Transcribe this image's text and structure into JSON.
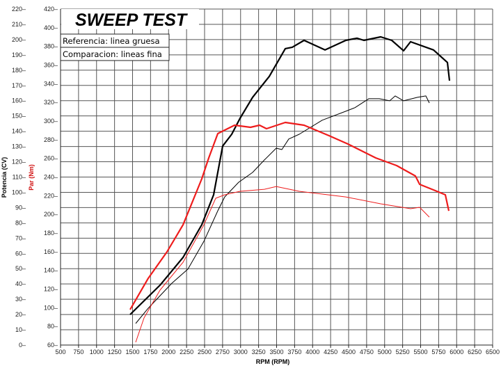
{
  "chart_data": {
    "type": "line",
    "title": "SWEEP TEST",
    "legend": [
      "Referencia: linea gruesa",
      "Comparacion: lineas fina"
    ],
    "legend_placement": "top-left",
    "xlabel": "RPM (RPM)",
    "ylabel_left_outer": "Potencia (CV)",
    "ylabel_left_inner": "Par (Nm)",
    "xlim": [
      500,
      6500
    ],
    "x_ticks": [
      500,
      750,
      1000,
      1250,
      1500,
      1750,
      2000,
      2250,
      2500,
      2750,
      3000,
      3250,
      3500,
      3750,
      4000,
      4250,
      4500,
      4750,
      5000,
      5250,
      5500,
      5750,
      6000,
      6250,
      6500
    ],
    "ylim_power": [
      0,
      220
    ],
    "power_ticks": [
      0,
      10,
      20,
      30,
      40,
      50,
      60,
      70,
      80,
      90,
      100,
      110,
      120,
      130,
      140,
      150,
      160,
      170,
      180,
      190,
      200,
      210,
      220
    ],
    "ylim_torque": [
      60,
      420
    ],
    "torque_ticks": [
      60,
      80,
      100,
      120,
      140,
      160,
      180,
      200,
      220,
      240,
      260,
      280,
      300,
      320,
      340,
      360,
      380,
      400,
      420
    ],
    "grid": true,
    "colors": {
      "power": "#000000",
      "torque": "#ee1c1c",
      "grid": "#555555",
      "torque_label": "#d01010"
    },
    "series": [
      {
        "name": "Potencia referencia",
        "axis": "power",
        "style": "thick",
        "x": [
          1466,
          1882,
          2201,
          2461,
          2626,
          2751,
          2877,
          2993,
          3167,
          3399,
          3621,
          3717,
          3882,
          4172,
          4461,
          4616,
          4713,
          4945,
          5099,
          5263,
          5360,
          5679,
          5872,
          5901
        ],
        "y": [
          20.0,
          39.2,
          57.4,
          78.8,
          98.4,
          130.3,
          138.0,
          148.5,
          162.2,
          175.9,
          194.1,
          195.0,
          199.5,
          193.2,
          199.5,
          200.9,
          199.5,
          201.8,
          199.5,
          192.7,
          198.6,
          193.2,
          185.0,
          173.1
        ]
      },
      {
        "name": "Potencia comparacion",
        "axis": "power",
        "style": "thin",
        "x": [
          1543,
          1717,
          2046,
          2268,
          2490,
          2684,
          2780,
          2973,
          3167,
          3331,
          3495,
          3573,
          3669,
          3814,
          4133,
          4461,
          4587,
          4780,
          4925,
          5070,
          5147,
          5263,
          5457,
          5572,
          5621
        ],
        "y": [
          14.1,
          24.1,
          40.5,
          49.7,
          67.9,
          87.9,
          97.0,
          106.6,
          113.0,
          121.2,
          128.9,
          128.0,
          134.9,
          138.0,
          147.2,
          153.1,
          155.4,
          161.3,
          161.3,
          159.9,
          163.1,
          159.9,
          162.2,
          163.1,
          158.5
        ]
      },
      {
        "name": "Par referencia",
        "axis": "torque",
        "style": "thick",
        "x": [
          1466,
          1717,
          1978,
          2201,
          2461,
          2558,
          2684,
          2780,
          2916,
          3138,
          3263,
          3360,
          3621,
          3882,
          4230,
          4490,
          4877,
          5167,
          5428,
          5486,
          5679,
          5843,
          5891
        ],
        "y": [
          98.0,
          131.5,
          159.9,
          188.9,
          238.1,
          260.5,
          286.6,
          290.3,
          295.5,
          293.3,
          295.5,
          291.8,
          298.5,
          295.5,
          284.3,
          275.4,
          260.5,
          252.3,
          241.1,
          232.2,
          226.2,
          221.0,
          203.8
        ]
      },
      {
        "name": "Par comparacion",
        "axis": "torque",
        "style": "thin",
        "x": [
          1543,
          1659,
          1882,
          2201,
          2490,
          2655,
          2780,
          2993,
          3331,
          3495,
          3814,
          4461,
          4945,
          5360,
          5486,
          5621
        ],
        "y": [
          63.0,
          89.1,
          118.9,
          148.7,
          188.9,
          217.3,
          221.0,
          224.7,
          226.9,
          229.9,
          224.7,
          218.7,
          211.3,
          206.1,
          207.6,
          197.1
        ]
      }
    ]
  }
}
